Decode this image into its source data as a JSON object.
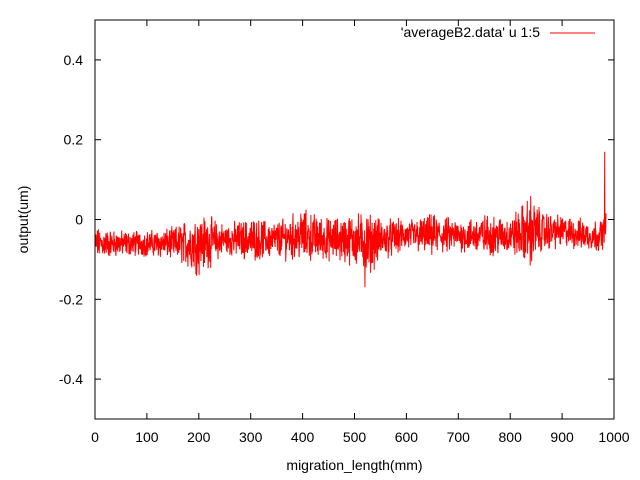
{
  "chart_data": {
    "type": "line",
    "title": "",
    "xlabel": "migration_length(mm)",
    "ylabel": "output(um)",
    "xlim": [
      0,
      1000
    ],
    "ylim": [
      -0.5,
      0.5
    ],
    "x_ticks": [
      "0",
      "100",
      "200",
      "300",
      "400",
      "500",
      "600",
      "700",
      "800",
      "900",
      "1000"
    ],
    "y_ticks": [
      "-0.4",
      "-0.2",
      "0",
      "0.2",
      "0.4"
    ],
    "legend_position": "top-right",
    "grid": false,
    "series": [
      {
        "name": "'averageB2.data' u 1:5",
        "color": "#ff0000",
        "x_start": 0,
        "x_end": 985,
        "x_step": 0.5,
        "envelope": [
          {
            "x": 0,
            "baseline": -0.06,
            "spread": 0.03
          },
          {
            "x": 50,
            "baseline": -0.06,
            "spread": 0.025
          },
          {
            "x": 100,
            "baseline": -0.06,
            "spread": 0.025
          },
          {
            "x": 150,
            "baseline": -0.06,
            "spread": 0.03
          },
          {
            "x": 200,
            "baseline": -0.06,
            "spread": 0.06
          },
          {
            "x": 250,
            "baseline": -0.05,
            "spread": 0.03
          },
          {
            "x": 300,
            "baseline": -0.05,
            "spread": 0.04
          },
          {
            "x": 350,
            "baseline": -0.05,
            "spread": 0.035
          },
          {
            "x": 400,
            "baseline": -0.04,
            "spread": 0.05
          },
          {
            "x": 450,
            "baseline": -0.05,
            "spread": 0.04
          },
          {
            "x": 500,
            "baseline": -0.05,
            "spread": 0.05
          },
          {
            "x": 525,
            "baseline": -0.06,
            "spread": 0.06
          },
          {
            "x": 550,
            "baseline": -0.05,
            "spread": 0.04
          },
          {
            "x": 600,
            "baseline": -0.04,
            "spread": 0.03
          },
          {
            "x": 650,
            "baseline": -0.04,
            "spread": 0.04
          },
          {
            "x": 700,
            "baseline": -0.04,
            "spread": 0.03
          },
          {
            "x": 750,
            "baseline": -0.04,
            "spread": 0.04
          },
          {
            "x": 800,
            "baseline": -0.04,
            "spread": 0.035
          },
          {
            "x": 840,
            "baseline": -0.03,
            "spread": 0.07
          },
          {
            "x": 860,
            "baseline": -0.03,
            "spread": 0.04
          },
          {
            "x": 900,
            "baseline": -0.03,
            "spread": 0.03
          },
          {
            "x": 950,
            "baseline": -0.04,
            "spread": 0.03
          },
          {
            "x": 975,
            "baseline": -0.04,
            "spread": 0.03
          },
          {
            "x": 985,
            "baseline": -0.02,
            "spread": 0.03
          }
        ],
        "extremes": {
          "min": -0.17,
          "max": 0.17,
          "min_at": 520,
          "max_at": 982
        }
      }
    ]
  }
}
